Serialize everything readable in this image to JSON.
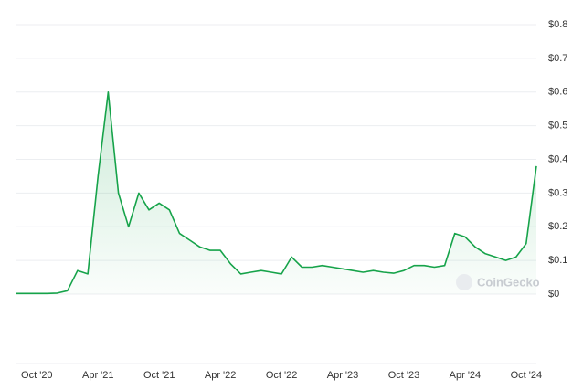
{
  "chart_data": {
    "type": "line",
    "watermark": "CoinGecko",
    "x": [
      "2020-08",
      "2020-09",
      "2020-10",
      "2020-11",
      "2020-12",
      "2021-01",
      "2021-02",
      "2021-03",
      "2021-04",
      "2021-05",
      "2021-06",
      "2021-07",
      "2021-08",
      "2021-09",
      "2021-10",
      "2021-11",
      "2021-12",
      "2022-01",
      "2022-02",
      "2022-03",
      "2022-04",
      "2022-05",
      "2022-06",
      "2022-07",
      "2022-08",
      "2022-09",
      "2022-10",
      "2022-11",
      "2022-12",
      "2023-01",
      "2023-02",
      "2023-03",
      "2023-04",
      "2023-05",
      "2023-06",
      "2023-07",
      "2023-08",
      "2023-09",
      "2023-10",
      "2023-11",
      "2023-12",
      "2024-01",
      "2024-02",
      "2024-03",
      "2024-04",
      "2024-05",
      "2024-06",
      "2024-07",
      "2024-08",
      "2024-09",
      "2024-10",
      "2024-11"
    ],
    "series": [
      {
        "color": "#16a34a",
        "values": [
          0.002,
          0.002,
          0.002,
          0.002,
          0.003,
          0.01,
          0.07,
          0.06,
          0.35,
          0.6,
          0.3,
          0.2,
          0.3,
          0.25,
          0.27,
          0.25,
          0.18,
          0.16,
          0.14,
          0.13,
          0.13,
          0.09,
          0.06,
          0.065,
          0.07,
          0.065,
          0.06,
          0.11,
          0.08,
          0.08,
          0.085,
          0.08,
          0.075,
          0.07,
          0.065,
          0.07,
          0.065,
          0.062,
          0.07,
          0.085,
          0.085,
          0.08,
          0.085,
          0.18,
          0.17,
          0.14,
          0.12,
          0.11,
          0.1,
          0.11,
          0.15,
          0.38
        ]
      }
    ],
    "xlim": [
      "2020-08",
      "2024-11"
    ],
    "xticks": [
      {
        "value": "2020-10",
        "label": "Oct '20"
      },
      {
        "value": "2021-04",
        "label": "Apr '21"
      },
      {
        "value": "2021-10",
        "label": "Oct '21"
      },
      {
        "value": "2022-04",
        "label": "Apr '22"
      },
      {
        "value": "2022-10",
        "label": "Oct '22"
      },
      {
        "value": "2023-04",
        "label": "Apr '23"
      },
      {
        "value": "2023-10",
        "label": "Oct '23"
      },
      {
        "value": "2024-04",
        "label": "Apr '24"
      },
      {
        "value": "2024-10",
        "label": "Oct '24"
      }
    ],
    "ylim": [
      0,
      0.8
    ],
    "yticks": [
      {
        "value": 0,
        "label": "$0"
      },
      {
        "value": 0.1,
        "label": "$0.1"
      },
      {
        "value": 0.2,
        "label": "$0.2"
      },
      {
        "value": 0.3,
        "label": "$0.3"
      },
      {
        "value": 0.4,
        "label": "$0.4"
      },
      {
        "value": 0.5,
        "label": "$0.5"
      },
      {
        "value": 0.6,
        "label": "$0.6"
      },
      {
        "value": 0.7,
        "label": "$0.7"
      },
      {
        "value": 0.8,
        "label": "$0.8"
      }
    ],
    "grid": true
  }
}
